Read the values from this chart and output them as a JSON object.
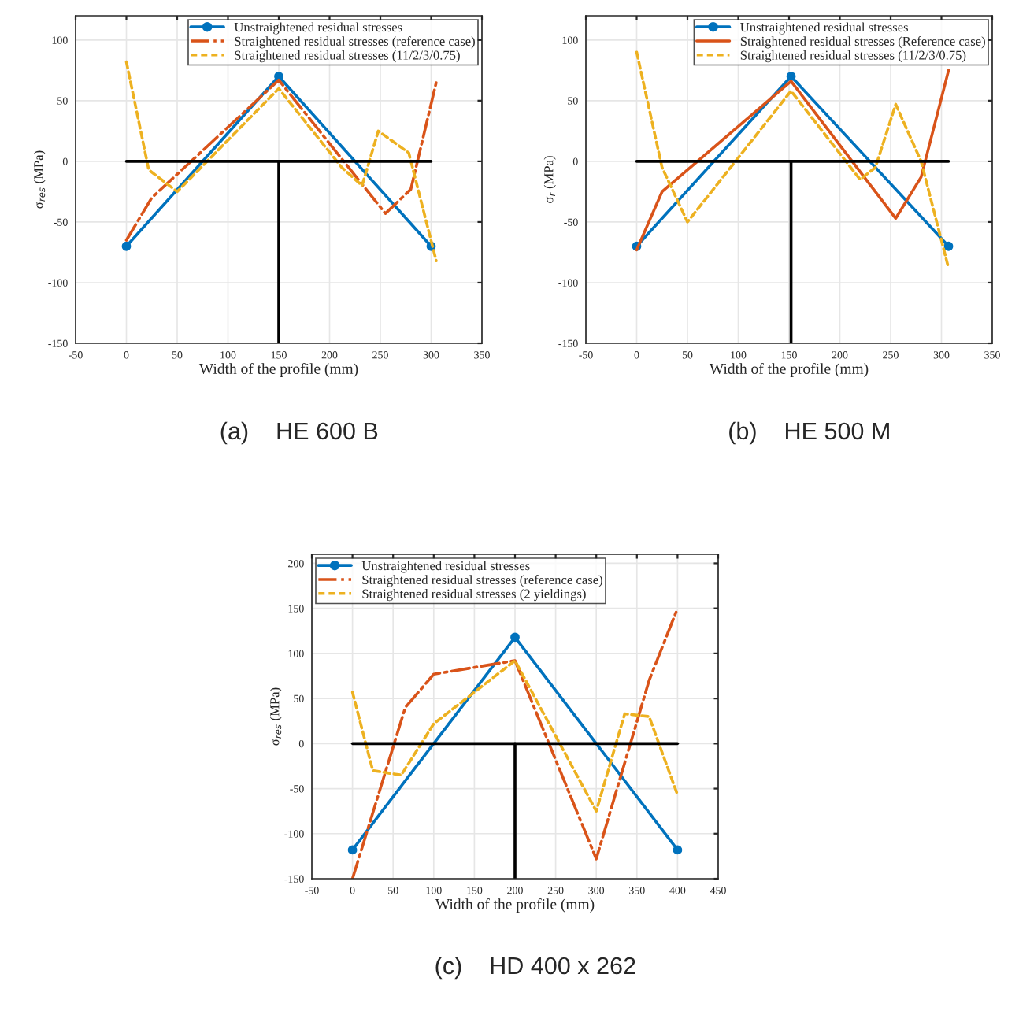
{
  "chart_data": [
    {
      "type": "line",
      "xlabel": "Width of the profile (mm)",
      "ylabel": "σ$_{res}$ (MPa)",
      "xlim": [
        -50,
        350
      ],
      "xticks": [
        -50,
        0,
        50,
        100,
        150,
        200,
        250,
        300,
        350
      ],
      "ylim": [
        -150,
        120
      ],
      "yticks": [
        -150,
        -100,
        -50,
        0,
        50,
        100
      ],
      "grid": true,
      "legend": "top right",
      "annotations": [
        "(a)    HE 600 B"
      ],
      "series": [
        {
          "name": "Unstraightened residual stresses",
          "color": "#0072bd",
          "marker": "circle",
          "line_style": "solid",
          "x": [
            0,
            150,
            300
          ],
          "values": [
            -70,
            70,
            -70
          ]
        },
        {
          "name": "Straightened residual stresses (reference case)",
          "color": "#d95319",
          "marker": "none",
          "line_style": "dashdot",
          "x": [
            0,
            25,
            150,
            255,
            280,
            305
          ],
          "values": [
            -65,
            -30,
            67,
            -43,
            -23,
            65
          ]
        },
        {
          "name": "Straightened residual stresses (11/2/3/0.75)",
          "color": "#edb120",
          "marker": "none",
          "line_style": "dashed",
          "x": [
            0,
            22,
            50,
            150,
            212,
            232,
            248,
            278,
            305
          ],
          "values": [
            82,
            -7,
            -25,
            60,
            -5,
            -20,
            25,
            7,
            -82
          ]
        },
        {
          "color": "#000000",
          "marker": "none",
          "line_style": "solid",
          "x": [
            0,
            300
          ],
          "values": [
            0,
            0
          ]
        },
        {
          "color": "#000000",
          "marker": "none",
          "line_style": "solid",
          "x": [
            150,
            150
          ],
          "values": [
            0,
            -150
          ]
        }
      ]
    },
    {
      "type": "line",
      "xlabel": "Width of the profile (mm)",
      "ylabel": "σ$_{r}$ (MPa)",
      "xlim": [
        -50,
        350
      ],
      "xticks": [
        -50,
        0,
        50,
        100,
        150,
        200,
        250,
        300,
        350
      ],
      "ylim": [
        -150,
        120
      ],
      "yticks": [
        -150,
        -100,
        -50,
        0,
        50,
        100
      ],
      "grid": true,
      "legend": "top right",
      "annotations": [
        "(b)    HE 500 M"
      ],
      "series": [
        {
          "name": "Unstraightened residual stresses",
          "color": "#0072bd",
          "marker": "circle",
          "line_style": "solid",
          "x": [
            0,
            152,
            307
          ],
          "values": [
            -70,
            70,
            -70
          ]
        },
        {
          "name": "Straightened residual stresses (Reference case)",
          "color": "#d95319",
          "marker": "none",
          "line_style": "solid",
          "x": [
            0,
            25,
            152,
            255,
            280,
            307
          ],
          "values": [
            -73,
            -25,
            66,
            -47,
            -13,
            75
          ]
        },
        {
          "name": "Straightened residual stresses (11/2/3/0.75)",
          "color": "#edb120",
          "marker": "none",
          "line_style": "dashed",
          "x": [
            0,
            25,
            50,
            152,
            220,
            235,
            255,
            280,
            307
          ],
          "values": [
            90,
            -5,
            -50,
            58,
            -15,
            -5,
            47,
            0,
            -88
          ]
        },
        {
          "color": "#000000",
          "marker": "none",
          "line_style": "solid",
          "x": [
            0,
            307
          ],
          "values": [
            0,
            0
          ]
        },
        {
          "color": "#000000",
          "marker": "none",
          "line_style": "solid",
          "x": [
            152,
            152
          ],
          "values": [
            0,
            -150
          ]
        }
      ]
    },
    {
      "type": "line",
      "xlabel": "Width of the profile (mm)",
      "ylabel": "σ$_{res}$ (MPa)",
      "xlim": [
        -50,
        450
      ],
      "xticks": [
        -50,
        0,
        50,
        100,
        150,
        200,
        250,
        300,
        350,
        400,
        450
      ],
      "ylim": [
        -150,
        210
      ],
      "yticks": [
        -150,
        -100,
        -50,
        0,
        50,
        100,
        150,
        200
      ],
      "grid": true,
      "legend": "top left",
      "annotations": [
        "(c)    HD 400 x 262"
      ],
      "series": [
        {
          "name": "Unstraightened residual stresses",
          "color": "#0072bd",
          "marker": "circle",
          "line_style": "solid",
          "x": [
            0,
            200,
            400
          ],
          "values": [
            -118,
            118,
            -118
          ]
        },
        {
          "name": "Straightened residual stresses (reference case)",
          "color": "#d95319",
          "marker": "none",
          "line_style": "dashdot",
          "x": [
            0,
            65,
            100,
            200,
            300,
            365,
            400
          ],
          "values": [
            -150,
            40,
            77,
            92,
            -128,
            70,
            150
          ]
        },
        {
          "name": "Straightened residual stresses (2 yieldings)",
          "color": "#edb120",
          "marker": "none",
          "line_style": "dashed",
          "x": [
            0,
            25,
            60,
            100,
            200,
            300,
            335,
            365,
            400
          ],
          "values": [
            57,
            -30,
            -35,
            22,
            92,
            -75,
            33,
            30,
            -57
          ]
        },
        {
          "color": "#000000",
          "marker": "none",
          "line_style": "solid",
          "x": [
            0,
            400
          ],
          "values": [
            0,
            0
          ]
        },
        {
          "color": "#000000",
          "marker": "none",
          "line_style": "solid",
          "x": [
            200,
            200
          ],
          "values": [
            0,
            -150
          ]
        }
      ]
    }
  ]
}
